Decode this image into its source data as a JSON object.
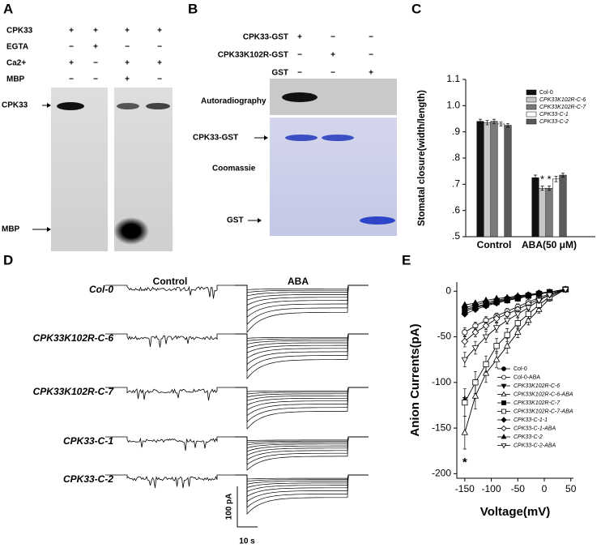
{
  "panel_a": {
    "label": "A",
    "rows": [
      {
        "name": "CPK33",
        "marks": [
          "+",
          "+",
          "+",
          "+"
        ]
      },
      {
        "name": "EGTA",
        "marks": [
          "−",
          "+",
          "−",
          "−"
        ]
      },
      {
        "name": "Ca2+",
        "marks": [
          "+",
          "−",
          "+",
          "+"
        ]
      },
      {
        "name": "MBP",
        "marks": [
          "−",
          "−",
          "+",
          "−"
        ]
      }
    ],
    "bands": [
      "CPK33",
      "MBP"
    ]
  },
  "panel_b": {
    "label": "B",
    "rows": [
      {
        "name": "CPK33-GST",
        "marks": [
          "+",
          "−",
          "−"
        ]
      },
      {
        "name": "CPK33K102R-GST",
        "marks": [
          "−",
          "+",
          "−"
        ]
      },
      {
        "name": "GST",
        "marks": [
          "−",
          "−",
          "+"
        ]
      }
    ],
    "autorad": "Autoradiography",
    "coomassie": "Coomassie",
    "band_top": "CPK33-GST",
    "band_bottom": "GST"
  },
  "panel_d": {
    "label": "D",
    "headers": [
      "Control",
      "ABA"
    ],
    "rows": [
      "Col-0",
      "CPK33K102R-C-6",
      "CPK33K102R-C-7",
      "CPK33-C-1",
      "CPK33-C-2"
    ],
    "scale_y": "100 pA",
    "scale_x": "10 s"
  },
  "chart_data": [
    {
      "type": "bar",
      "label": "C",
      "ylabel": "Stomatal closure(width/length)",
      "categories": [
        "Control",
        "ABA(50 μM)"
      ],
      "series": [
        {
          "name": "Col-0",
          "color": "#111111",
          "values": [
            0.94,
            0.725
          ],
          "errors": [
            0.008,
            0.01
          ]
        },
        {
          "name": "CPK33K102R-C-6",
          "color": "#c8c8c8",
          "values": [
            0.935,
            0.685
          ],
          "errors": [
            0.008,
            0.008
          ]
        },
        {
          "name": "CPK33K102R-C-7",
          "color": "#7a7a7a",
          "values": [
            0.94,
            0.685
          ],
          "errors": [
            0.008,
            0.008
          ]
        },
        {
          "name": "CPK33-C-1",
          "color": "#ffffff",
          "values": [
            0.93,
            0.72
          ],
          "errors": [
            0.007,
            0.01
          ]
        },
        {
          "name": "CPK33-C-2",
          "color": "#5a5a5a",
          "values": [
            0.925,
            0.735
          ],
          "errors": [
            0.007,
            0.008
          ]
        }
      ],
      "ylim": [
        0.5,
        1.1
      ],
      "yticks": [
        {
          "value": 0.5,
          "label": ".5"
        },
        {
          "value": 0.6,
          "label": ".6"
        },
        {
          "value": 0.7,
          "label": ".7"
        },
        {
          "value": 0.8,
          "label": ".8"
        },
        {
          "value": 0.9,
          "label": ".9"
        },
        {
          "value": 1.0,
          "label": "1.0"
        },
        1.1
      ],
      "annotations": [
        {
          "text": "*",
          "category": 1,
          "series": 1
        },
        {
          "text": "*",
          "category": 1,
          "series": 2
        }
      ]
    },
    {
      "type": "line",
      "label": "E",
      "xlabel": "Voltage(mV)",
      "ylabel": "Anion Currents(pA)",
      "x": [
        -150,
        -130,
        -110,
        -90,
        -70,
        -50,
        -30,
        -10,
        10,
        40
      ],
      "series": [
        {
          "name": "Col-0",
          "color": "#000000",
          "marker": "circle",
          "filled": true,
          "values": [
            -18,
            -15,
            -12,
            -10,
            -8,
            -6,
            -4,
            -2,
            -1,
            2
          ]
        },
        {
          "name": "Col-0-ABA",
          "color": "#000000",
          "marker": "circle",
          "filled": false,
          "values": [
            -45,
            -38,
            -32,
            -27,
            -22,
            -17,
            -12,
            -7,
            -3,
            2
          ],
          "errors": [
            5,
            4,
            4,
            3,
            3,
            3,
            2,
            2,
            2,
            1
          ]
        },
        {
          "name": "CPK33K102R-C-6",
          "color": "#000000",
          "marker": "tri-down",
          "filled": true,
          "values": [
            -20,
            -17,
            -14,
            -11,
            -9,
            -7,
            -5,
            -3,
            -1,
            2
          ]
        },
        {
          "name": "CPK33K102R-C-6-ABA",
          "color": "#000000",
          "marker": "tri-up",
          "filled": false,
          "values": [
            -155,
            -115,
            -90,
            -75,
            -60,
            -45,
            -32,
            -20,
            -8,
            2
          ],
          "errors": [
            18,
            14,
            10,
            9,
            8,
            6,
            5,
            4,
            3,
            2
          ]
        },
        {
          "name": "CPK33K102R-C-7",
          "color": "#000000",
          "marker": "square",
          "filled": true,
          "values": [
            -22,
            -18,
            -15,
            -12,
            -10,
            -8,
            -5,
            -3,
            -1,
            2
          ]
        },
        {
          "name": "CPK33K102R-C-7-ABA",
          "color": "#000000",
          "marker": "square",
          "filled": false,
          "values": [
            -122,
            -100,
            -80,
            -60,
            -48,
            -35,
            -25,
            -15,
            -6,
            2
          ],
          "errors": [
            15,
            12,
            9,
            8,
            7,
            6,
            5,
            4,
            3,
            2
          ]
        },
        {
          "name": "CPK33-C-1-1",
          "color": "#000000",
          "marker": "diamond",
          "filled": true,
          "values": [
            -25,
            -20,
            -16,
            -13,
            -10,
            -8,
            -5,
            -3,
            -1,
            2
          ]
        },
        {
          "name": "CPK33-C-1-ABA",
          "color": "#000000",
          "marker": "diamond",
          "filled": false,
          "values": [
            -55,
            -45,
            -38,
            -30,
            -25,
            -20,
            -14,
            -9,
            -4,
            2
          ],
          "errors": [
            6,
            5,
            4,
            4,
            3,
            3,
            2,
            2,
            2,
            1
          ]
        },
        {
          "name": "CPK33-C-2",
          "color": "#000000",
          "marker": "tri-up",
          "filled": true,
          "values": [
            -15,
            -13,
            -10,
            -8,
            -7,
            -5,
            -4,
            -2,
            -1,
            2
          ]
        },
        {
          "name": "CPK33-C-2-ABA",
          "color": "#000000",
          "marker": "tri-down",
          "filled": false,
          "values": [
            -75,
            -62,
            -50,
            -40,
            -32,
            -25,
            -18,
            -10,
            -4,
            2
          ],
          "errors": [
            8,
            7,
            6,
            5,
            4,
            4,
            3,
            3,
            2,
            1
          ]
        }
      ],
      "xlim": [
        -165,
        55
      ],
      "ylim": [
        -205,
        10
      ],
      "xticks": [
        -150,
        -100,
        -50,
        0,
        50
      ],
      "yticks": [
        0,
        -50,
        -100,
        -150,
        -200
      ],
      "annotations": [
        {
          "text": "*",
          "x": -150,
          "y": -120
        },
        {
          "text": "*",
          "x": -150,
          "y": -188
        }
      ]
    }
  ]
}
